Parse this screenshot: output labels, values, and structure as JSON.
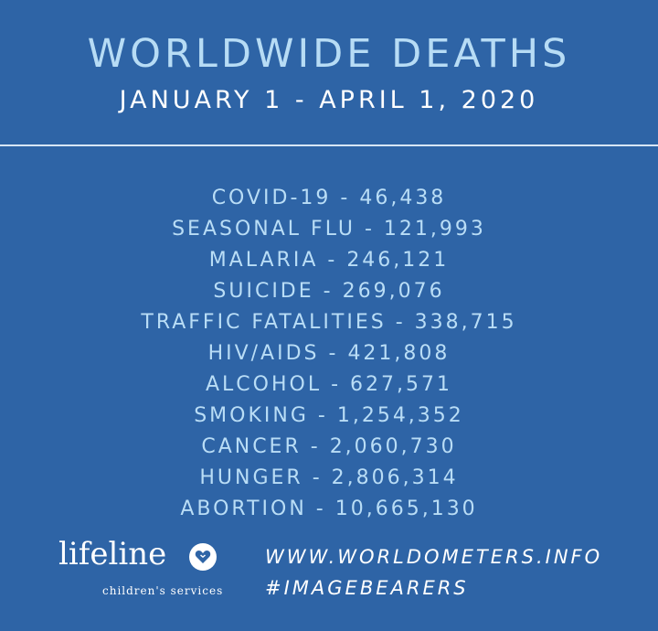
{
  "header": {
    "title": "WORLDWIDE DEATHS",
    "subtitle": "JANUARY 1 - APRIL 1, 2020"
  },
  "causes": [
    {
      "name": "COVID-19",
      "count": "46,438"
    },
    {
      "name": "SEASONAL FLU",
      "count": "121,993"
    },
    {
      "name": "MALARIA",
      "count": "246,121"
    },
    {
      "name": "SUICIDE",
      "count": "269,076"
    },
    {
      "name": "TRAFFIC FATALITIES",
      "count": "338,715"
    },
    {
      "name": "HIV/AIDS",
      "count": "421,808"
    },
    {
      "name": "ALCOHOL",
      "count": "627,571"
    },
    {
      "name": "SMOKING",
      "count": "1,254,352"
    },
    {
      "name": "CANCER",
      "count": "2,060,730"
    },
    {
      "name": "HUNGER",
      "count": "2,806,314"
    },
    {
      "name": "ABORTION",
      "count": "10,665,130"
    }
  ],
  "separator": " - ",
  "logo": {
    "name": "lifeline",
    "tagline": "children's services",
    "icon": "heart-badge-icon"
  },
  "footer": {
    "website": "WWW.WORLDOMETERS.INFO",
    "hashtag": "#IMAGEBEARERS"
  },
  "colors": {
    "background": "#2e64a6",
    "title": "#b7dcf5",
    "list_text": "#b9ddf6",
    "white": "#ffffff"
  }
}
